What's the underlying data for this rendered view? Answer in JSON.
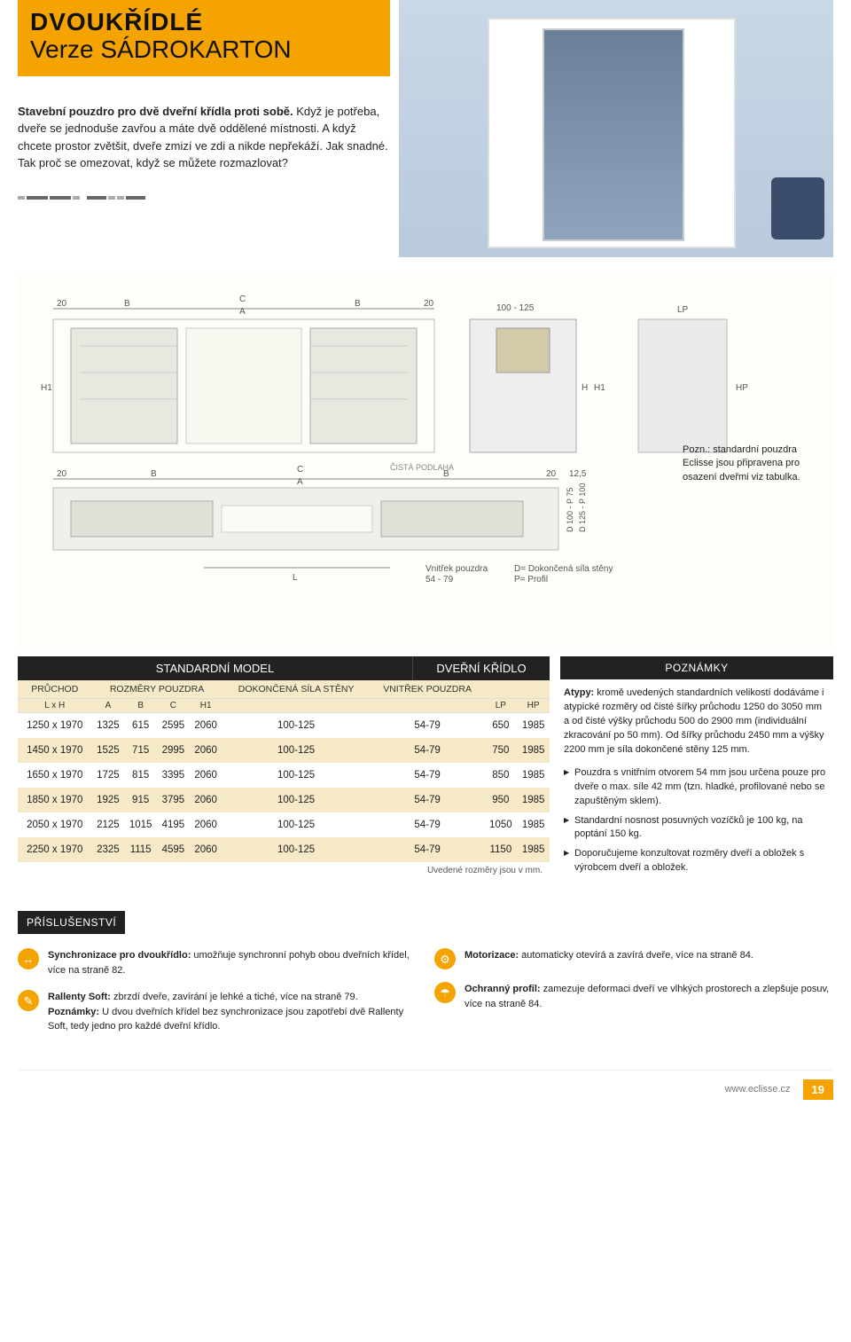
{
  "title": {
    "line1": "DVOUKŘÍDLÉ",
    "line2": "Verze SÁDROKARTON"
  },
  "intro": {
    "bold": "Stavební pouzdro pro dvě dveřní křídla proti sobě.",
    "rest": "Když je potřeba, dveře se jednoduše zavřou a máte dvě oddělené místnosti. A když chcete prostor zvětšit, dveře zmizí ve zdi a nikde nepřekáží. Jak snadné. Tak proč se omezovat, když se můžete rozmazlovat?"
  },
  "diagram": {
    "top_label": "100 - 125",
    "labels": [
      "20",
      "B",
      "C",
      "A",
      "B",
      "20",
      "H1",
      "H",
      "LP",
      "HP",
      "12,5"
    ],
    "floor_label": "ČISTÁ PODLAHA",
    "side_labels": [
      "D 100 - P 75",
      "D 125 - P 100"
    ],
    "bottom_label_l": "L",
    "bottom_label_r1": "Vnitřek pouzdra",
    "bottom_label_r2": "54 - 79",
    "legend_d": "D= Dokončená síla stěny",
    "legend_p": "P= Profil",
    "note": "Pozn.: standardní pouzdra Eclisse jsou připravena pro osazení dveřmi viz tabulka."
  },
  "table": {
    "header_std": "STANDARDNÍ MODEL",
    "header_dk": "DVEŘNÍ KŘÍDLO",
    "header_notes": "POZNÁMKY",
    "col_groups": {
      "pruchod": "PRŮCHOD",
      "pruchod_sub": "L x H",
      "rozmer": "ROZMĚRY POUZDRA",
      "dokoncena": "DOKONČENÁ SÍLA STĚNY",
      "vnitrek": "VNITŘEK POUZDRA"
    },
    "cols": [
      "A",
      "B",
      "C",
      "H1",
      "",
      "",
      "LP",
      "HP"
    ],
    "rows": [
      [
        "1250 x 1970",
        "1325",
        "615",
        "2595",
        "2060",
        "100-125",
        "54-79",
        "650",
        "1985"
      ],
      [
        "1450 x 1970",
        "1525",
        "715",
        "2995",
        "2060",
        "100-125",
        "54-79",
        "750",
        "1985"
      ],
      [
        "1650 x 1970",
        "1725",
        "815",
        "3395",
        "2060",
        "100-125",
        "54-79",
        "850",
        "1985"
      ],
      [
        "1850 x 1970",
        "1925",
        "915",
        "3795",
        "2060",
        "100-125",
        "54-79",
        "950",
        "1985"
      ],
      [
        "2050 x 1970",
        "2125",
        "1015",
        "4195",
        "2060",
        "100-125",
        "54-79",
        "1050",
        "1985"
      ],
      [
        "2250 x 1970",
        "2325",
        "1115",
        "4595",
        "2060",
        "100-125",
        "54-79",
        "1150",
        "1985"
      ]
    ],
    "footnote": "Uvedené rozměry jsou v mm."
  },
  "notes": {
    "atypy_bold": "Atypy:",
    "atypy": " kromě uvedených standardních velikostí dodáváme i atypické rozměry od čisté šířky průchodu 1250 do 3050 mm a od čisté výšky průchodu 500 do 2900 mm (individuální zkracování po 50 mm). Od šířky průchodu 2450 mm a výšky 2200 mm je síla dokončené stěny 125 mm.",
    "bullets": [
      "Pouzdra s vnitřním otvorem 54 mm jsou určena pouze pro dveře o max. síle 42 mm (tzn. hladké, profilované nebo se zapuštěným sklem).",
      "Standardní nosnost posuvných vozíčků je 100 kg, na poptání 150 kg.",
      "Doporučujeme konzultovat rozměry dveří a obložek s výrobcem dveří a obložek."
    ]
  },
  "accessories": {
    "header": "PŘÍSLUŠENSTVÍ",
    "items_left": [
      {
        "icon": "↔",
        "bold": "Synchronizace pro dvoukřídlo:",
        "text": " umožňuje synchronní pohyb obou dveřních křídel, více na straně 82."
      },
      {
        "icon": "✎",
        "bold": "Rallenty Soft:",
        "text": " zbrzdí dveře, zavírání je lehké a tiché, více na straně 79.",
        "sub_bold": "Poznámky:",
        "sub": " U dvou dveřních křídel bez synchronizace jsou zapotřebí dvě Rallenty Soft, tedy jedno pro každé dveřní křídlo."
      }
    ],
    "items_right": [
      {
        "icon": "⚙",
        "bold": "Motorizace:",
        "text": " automaticky otevírá a zavírá dveře, více na straně 84."
      },
      {
        "icon": "☂",
        "bold": "Ochranný profil:",
        "text": " zamezuje deformaci dveří ve vlhkých prostorech a zlepšuje posuv, více na straně 84."
      }
    ]
  },
  "footer": {
    "url": "www.eclisse.cz",
    "page": "19"
  }
}
